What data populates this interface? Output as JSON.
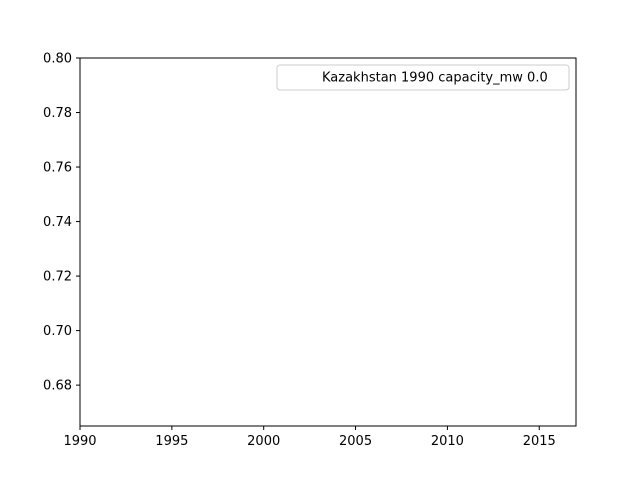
{
  "chart_data": {
    "type": "line",
    "title": "",
    "xlabel": "",
    "ylabel": "",
    "xlim": [
      1990,
      2017
    ],
    "ylim": [
      0.665,
      0.8
    ],
    "x_ticks": [
      1990,
      1995,
      2000,
      2005,
      2010,
      2015
    ],
    "y_ticks": [
      0.68,
      0.7,
      0.72,
      0.74,
      0.76,
      0.78,
      0.8
    ],
    "y_tick_labels": [
      "0.68",
      "0.70",
      "0.72",
      "0.74",
      "0.76",
      "0.78",
      "0.80"
    ],
    "grid": false,
    "legend": {
      "position": "top-right"
    },
    "series": [
      {
        "name": "Kazakhstan 1990 capacity_mw 0.0",
        "x": [],
        "y": [],
        "color": "#ffffff"
      }
    ]
  }
}
